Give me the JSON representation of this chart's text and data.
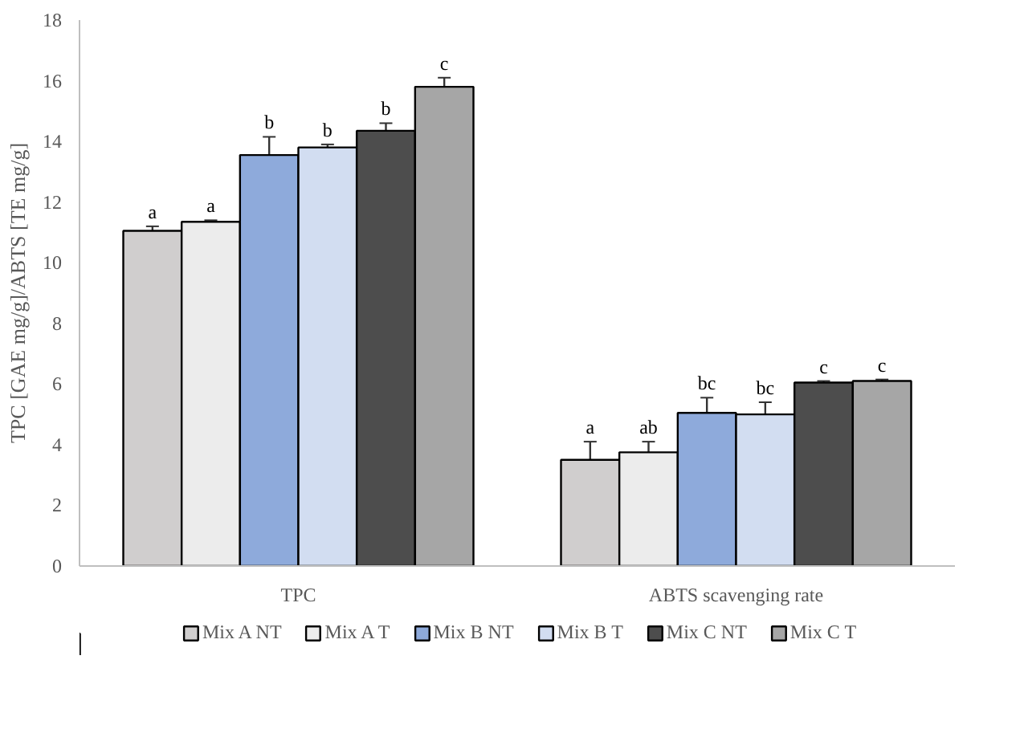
{
  "chart_data": {
    "type": "bar",
    "ylabel": "TPC [GAE mg/g]/ABTS [TE mg/g]",
    "categories": [
      "TPC",
      "ABTS scavenging rate"
    ],
    "series": [
      {
        "name": "Mix A NT",
        "color": "#d0cece",
        "values": [
          11.05,
          3.5
        ],
        "errors": [
          0.15,
          0.6
        ]
      },
      {
        "name": "Mix A T",
        "color": "#ececec",
        "values": [
          11.35,
          3.75
        ],
        "errors": [
          0.05,
          0.35
        ]
      },
      {
        "name": "Mix B NT",
        "color": "#8eaadb",
        "values": [
          13.55,
          5.05
        ],
        "errors": [
          0.6,
          0.5
        ]
      },
      {
        "name": "Mix B T",
        "color": "#d2ddf1",
        "values": [
          13.8,
          5.0
        ],
        "errors": [
          0.1,
          0.4
        ]
      },
      {
        "name": "Mix C NT",
        "color": "#4d4d4d",
        "values": [
          14.35,
          6.05
        ],
        "errors": [
          0.25,
          0.05
        ]
      },
      {
        "name": "Mix C T",
        "color": "#a6a6a6",
        "values": [
          15.8,
          6.1
        ],
        "errors": [
          0.3,
          0.05
        ]
      }
    ],
    "annotations": [
      "a",
      "a",
      "b",
      "b",
      "b",
      "c",
      "a",
      "ab",
      "bc",
      "bc",
      "c",
      "c"
    ],
    "ylim": [
      0,
      18
    ],
    "yticks": [
      0,
      2,
      4,
      6,
      8,
      10,
      12,
      14,
      16,
      18
    ],
    "grid": false,
    "legend": "bottom"
  }
}
